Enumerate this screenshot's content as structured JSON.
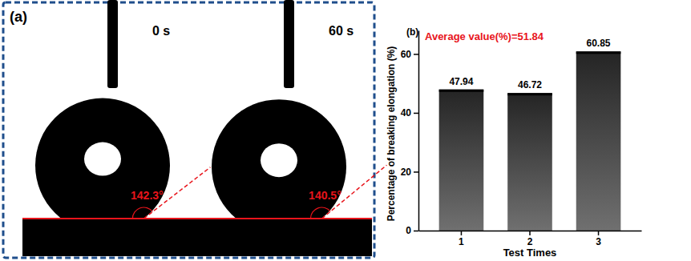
{
  "panel_a": {
    "label": "(a)",
    "frames": [
      {
        "time": "0 s",
        "contact_angle": {
          "value": 142.3,
          "label": "142.3°"
        }
      },
      {
        "time": "60 s",
        "contact_angle": {
          "value": 140.5,
          "label": "140.5°"
        }
      }
    ]
  },
  "chart_data": {
    "type": "bar",
    "panel_label": "(b)",
    "annotation": "Average value(%)=51.84",
    "x_label": "Test Times",
    "y_label": "Percentage of breaking elongation (%)",
    "categories": [
      "1",
      "2",
      "3"
    ],
    "values": [
      47.94,
      46.72,
      60.85
    ],
    "color": "#333333",
    "ylim": [
      0,
      68
    ],
    "yticks": [
      0,
      20,
      40,
      60
    ],
    "data_labels": true,
    "grid": false
  }
}
